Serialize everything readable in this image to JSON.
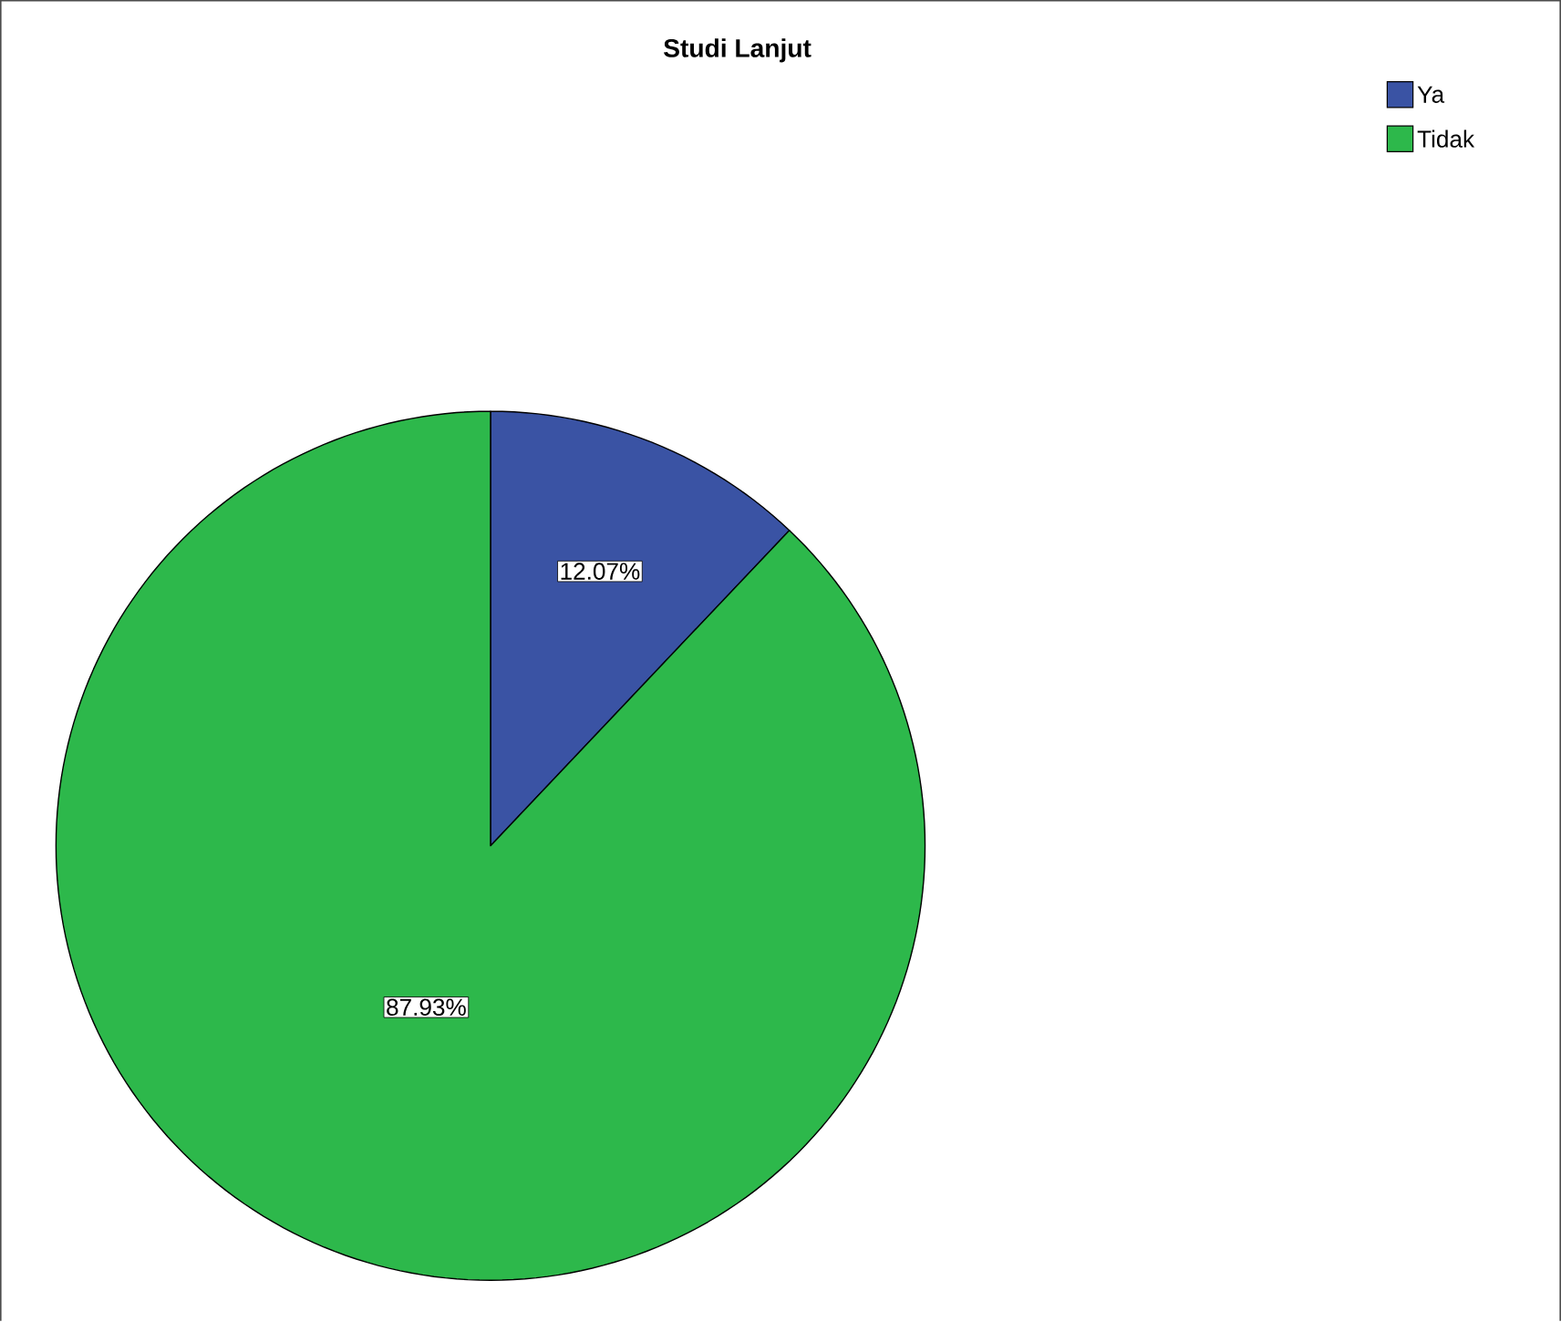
{
  "chart_data": {
    "type": "pie",
    "title": "Studi Lanjut",
    "categories": [
      "Ya",
      "Tidak"
    ],
    "values": [
      12.07,
      87.93
    ],
    "colors": [
      "#3a53a4",
      "#2db84b"
    ],
    "value_labels": [
      "12.07%",
      "87.93%"
    ],
    "legend": "top right"
  }
}
